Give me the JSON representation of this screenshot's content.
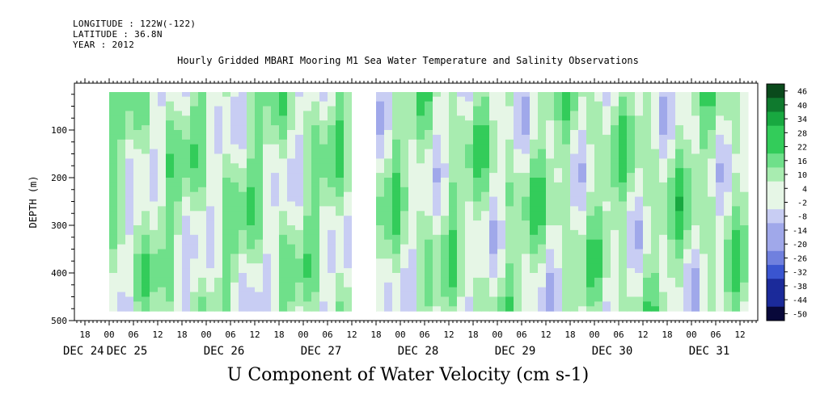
{
  "header": {
    "longitude": "LONGITUDE : 122W(-122)",
    "latitude": "LATITUDE : 36.8N",
    "year": "YEAR : 2012"
  },
  "chart_data": {
    "type": "heatmap",
    "title": "Hourly Gridded MBARI Mooring M1 Sea Water Temperature and Salinity Observations",
    "xlabel": "U Component of Water Velocity (cm s-1)",
    "ylabel": "DEPTH (m)",
    "y_range": [
      20,
      500
    ],
    "y_ticks": [
      100,
      200,
      300,
      400,
      500
    ],
    "x_hour_ticks": [
      "18",
      "00",
      "06",
      "12",
      "18",
      "00",
      "06",
      "12",
      "18",
      "00",
      "06",
      "12",
      "18",
      "00",
      "06",
      "12",
      "18",
      "00",
      "06",
      "12",
      "18",
      "00",
      "06",
      "12",
      "18",
      "00",
      "06",
      "12"
    ],
    "x_date_labels": [
      "DEC 24",
      "DEC 25",
      "DEC 26",
      "DEC 27",
      "DEC 28",
      "DEC 29",
      "DEC 30",
      "DEC 31"
    ],
    "colorbar_levels": [
      "46",
      "40",
      "34",
      "28",
      "22",
      "16",
      "10",
      "4",
      "-2",
      "-8",
      "-14",
      "-20",
      "-26",
      "-32",
      "-38",
      "-44",
      "-50"
    ],
    "colorbar_range": [
      -50,
      50
    ],
    "colormap": [
      "#08083a",
      "#1b2a9a",
      "#3a55d0",
      "#7080de",
      "#a0a8ea",
      "#c8cdf3",
      "#e6f6e6",
      "#a8ecb0",
      "#6fe08a",
      "#33cc5a",
      "#18a840",
      "#0f7a2e",
      "#0a4a1c"
    ],
    "data_gaps_hours": [
      [
        -12,
        -2
      ],
      [
        60,
        66
      ],
      [
        183,
        186
      ]
    ]
  }
}
